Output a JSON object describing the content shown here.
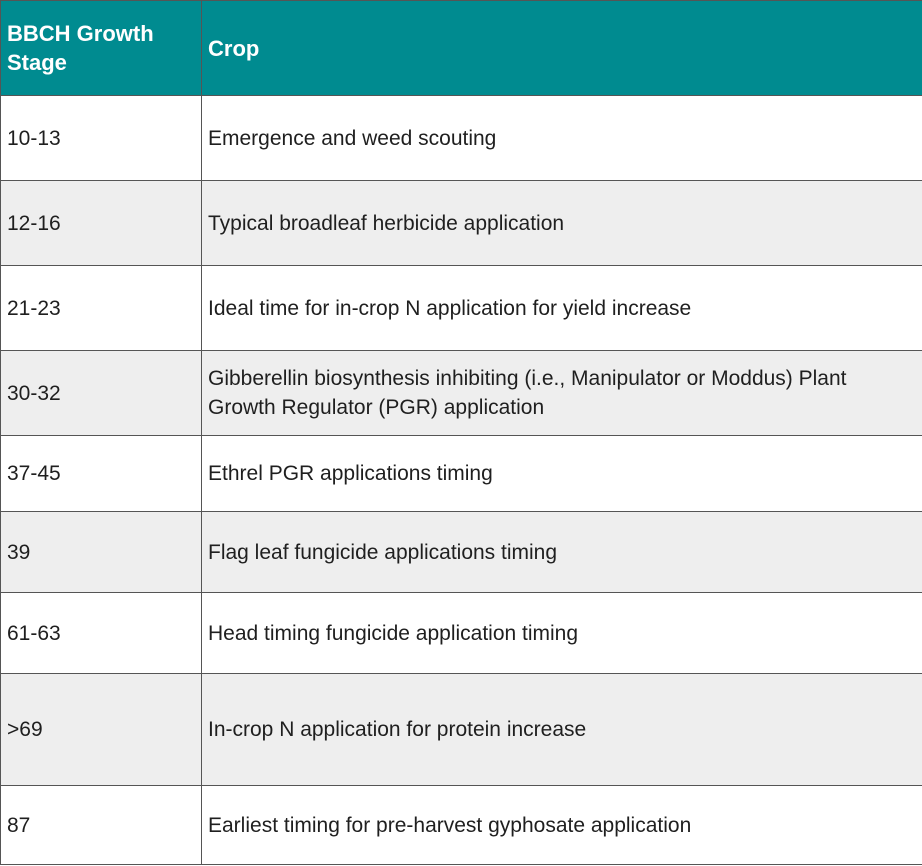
{
  "table": {
    "headers": [
      "BBCH Growth Stage",
      "Crop"
    ],
    "rows": [
      {
        "stage": "10-13",
        "crop": "Emergence and weed scouting"
      },
      {
        "stage": "12-16",
        "crop": "Typical broadleaf herbicide application"
      },
      {
        "stage": "21-23",
        "crop": "Ideal time for in-crop N application for yield increase"
      },
      {
        "stage": "30-32",
        "crop": "Gibberellin biosynthesis inhibiting (i.e., Manipulator or Moddus) Plant Growth Regulator (PGR) application"
      },
      {
        "stage": "37-45",
        "crop": "Ethrel PGR applications timing"
      },
      {
        "stage": "39",
        "crop": "Flag leaf fungicide applications timing"
      },
      {
        "stage": "61-63",
        "crop": "Head timing fungicide application timing"
      },
      {
        "stage": ">69",
        "crop": "In-crop N application for protein increase"
      },
      {
        "stage": "87",
        "crop": "Earliest timing for pre-harvest gyphosate application"
      }
    ]
  },
  "colors": {
    "header_background": "#008b90",
    "header_text": "#ffffff",
    "alt_row_background": "#eeeeee",
    "border": "#555555"
  }
}
